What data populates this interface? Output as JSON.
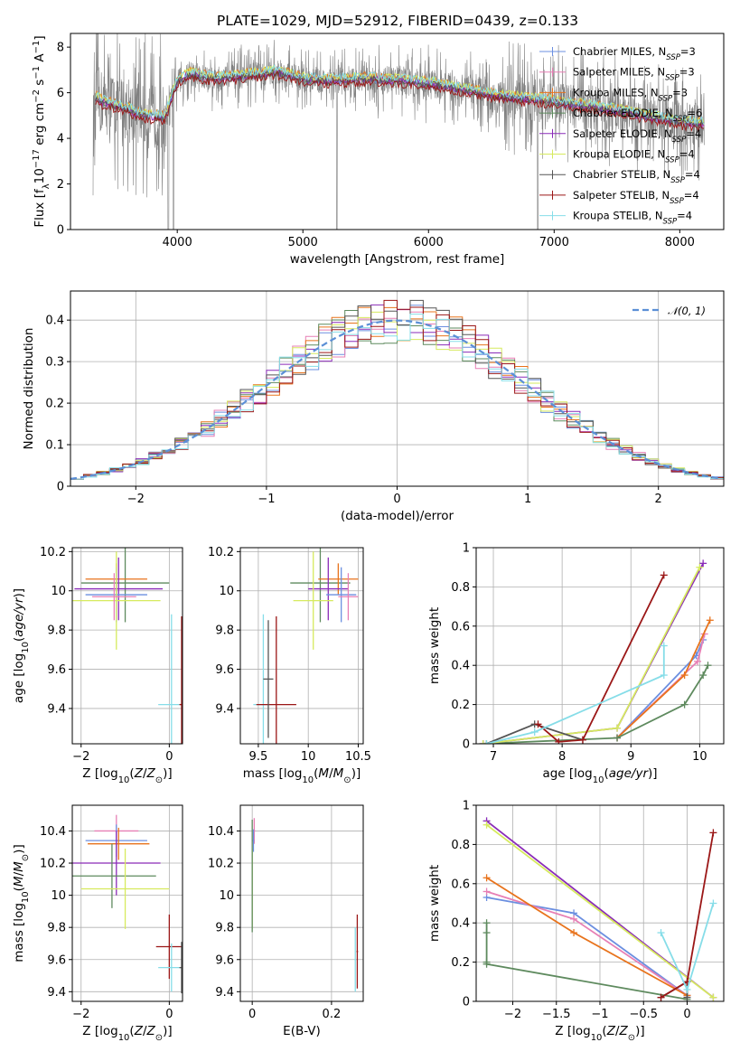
{
  "title": "PLATE=1029, MJD=52912, FIBERID=0439, z=0.133",
  "colors": {
    "Chabrier MILES": "#6b8fe0",
    "Salpeter MILES": "#e77fb5",
    "Kroupa MILES": "#e8731c",
    "Chabrier ELODIE": "#5e8a5e",
    "Salpeter ELODIE": "#8a2bb8",
    "Kroupa ELODIE": "#d6ea5e",
    "Chabrier STELIB": "#555555",
    "Salpeter STELIB": "#9b1717",
    "Kroupa STELIB": "#86dde8",
    "data": "#808080",
    "normal": "#5b8fd6"
  },
  "chart_data": [
    {
      "id": "spectrum",
      "type": "line",
      "title": "PLATE=1029, MJD=52912, FIBERID=0439, z=0.133",
      "xlabel": "wavelength [Angstrom, rest frame]",
      "ylabel": "Flux [f_λ 10^-17 erg cm^-2 s^-1 A^-1]",
      "xlim": [
        3150,
        8350
      ],
      "ylim": [
        0,
        8.6
      ],
      "xticks": [
        4000,
        5000,
        6000,
        7000,
        8000
      ],
      "yticks": [
        0,
        2,
        4,
        6,
        8
      ],
      "legend": [
        "Chabrier MILES, N_SSP=3",
        "Salpeter MILES, N_SSP=3",
        "Kroupa MILES, N_SSP=3",
        "Chabrier ELODIE, N_SSP=6",
        "Salpeter ELODIE, N_SSP=4",
        "Kroupa ELODIE, N_SSP=4",
        "Chabrier STELIB, N_SSP=4",
        "Salpeter STELIB, N_SSP=4",
        "Kroupa STELIB, N_SSP=4"
      ],
      "legend_position": "top-right",
      "model_continuum": [
        [
          3350,
          5.8
        ],
        [
          3400,
          5.6
        ],
        [
          3600,
          5.3
        ],
        [
          3700,
          5.0
        ],
        [
          3900,
          4.9
        ],
        [
          4000,
          6.5
        ],
        [
          4100,
          6.8
        ],
        [
          4300,
          6.6
        ],
        [
          4500,
          6.7
        ],
        [
          4800,
          6.9
        ],
        [
          5000,
          6.6
        ],
        [
          5200,
          6.5
        ],
        [
          5500,
          6.6
        ],
        [
          5800,
          6.5
        ],
        [
          6000,
          6.4
        ],
        [
          6300,
          6.1
        ],
        [
          6600,
          5.8
        ],
        [
          7000,
          5.6
        ],
        [
          7500,
          5.2
        ],
        [
          8000,
          4.7
        ],
        [
          8200,
          4.6
        ]
      ],
      "data_range": [
        3330,
        8200
      ],
      "grid": false
    },
    {
      "id": "residuals",
      "type": "histogram",
      "xlabel": "(data-model)/error",
      "ylabel": "Normed distribution",
      "xlim": [
        -2.5,
        2.5
      ],
      "ylim": [
        0,
        0.47
      ],
      "xticks": [
        -2,
        -1,
        0,
        1,
        2
      ],
      "yticks": [
        0.0,
        0.1,
        0.2,
        0.3,
        0.4
      ],
      "reference_label": "𝒩(0, 1)",
      "legend_position": "top-right",
      "bin_width": 0.1,
      "grid": true
    },
    {
      "id": "age-vs-Z",
      "type": "errorbar",
      "xlabel": "Z [log10(Z/Z⊙)]",
      "ylabel": "age  [log10(age/yr)]",
      "xlim": [
        -2.2,
        0.3
      ],
      "ylim": [
        9.22,
        10.22
      ],
      "xticks": [
        -2,
        0
      ],
      "yticks": [
        9.4,
        9.6,
        9.8,
        10.0,
        10.2
      ],
      "points": [
        {
          "s": "Chabrier ELODIE",
          "x": -1.0,
          "xe": 1.0,
          "y": 10.04,
          "ye": 0.2
        },
        {
          "s": "Kroupa MILES",
          "x": -1.2,
          "xe": 0.7,
          "y": 10.06,
          "ye": 0.08
        },
        {
          "s": "Salpeter ELODIE",
          "x": -1.15,
          "xe": 1.0,
          "y": 10.01,
          "ye": 0.16
        },
        {
          "s": "Chabrier MILES",
          "x": -1.2,
          "xe": 0.7,
          "y": 9.98,
          "ye": 0.14
        },
        {
          "s": "Kroupa ELODIE",
          "x": -1.2,
          "xe": 1.0,
          "y": 9.95,
          "ye": 0.25
        },
        {
          "s": "Salpeter MILES",
          "x": -1.25,
          "xe": 0.5,
          "y": 9.97,
          "ye": 0.12
        },
        {
          "s": "Kroupa STELIB",
          "x": 0.05,
          "xe": 0.3,
          "y": 9.42,
          "ye": 0.46
        },
        {
          "s": "Salpeter STELIB",
          "x": 0.28,
          "xe": 0.05,
          "y": 9.42,
          "ye": 0.45
        }
      ]
    },
    {
      "id": "age-vs-mass",
      "type": "errorbar",
      "xlabel": "mass [log10(M/M⊙)]",
      "ylabel": "",
      "xlim": [
        9.32,
        10.55
      ],
      "ylim": [
        9.22,
        10.22
      ],
      "xticks": [
        9.5,
        10.0,
        10.5
      ],
      "yticks": [
        9.4,
        9.6,
        9.8,
        10.0,
        10.2
      ],
      "points": [
        {
          "s": "Chabrier ELODIE",
          "x": 10.12,
          "xe": 0.3,
          "y": 10.04,
          "ye": 0.2
        },
        {
          "s": "Kroupa MILES",
          "x": 10.3,
          "xe": 0.2,
          "y": 10.06,
          "ye": 0.08
        },
        {
          "s": "Salpeter ELODIE",
          "x": 10.2,
          "xe": 0.2,
          "y": 10.01,
          "ye": 0.16
        },
        {
          "s": "Chabrier MILES",
          "x": 10.33,
          "xe": 0.15,
          "y": 9.98,
          "ye": 0.14
        },
        {
          "s": "Kroupa ELODIE",
          "x": 10.05,
          "xe": 0.2,
          "y": 9.95,
          "ye": 0.25
        },
        {
          "s": "Salpeter MILES",
          "x": 10.4,
          "xe": 0.1,
          "y": 9.97,
          "ye": 0.12
        },
        {
          "s": "Kroupa STELIB",
          "x": 9.55,
          "xe": 0.1,
          "y": 9.42,
          "ye": 0.46
        },
        {
          "s": "Salpeter STELIB",
          "x": 9.68,
          "xe": 0.2,
          "y": 9.42,
          "ye": 0.45
        },
        {
          "s": "Chabrier STELIB",
          "x": 9.6,
          "xe": 0.05,
          "y": 9.55,
          "ye": 0.3
        }
      ]
    },
    {
      "id": "mass-weight-vs-age",
      "type": "line",
      "xlabel": "age  [log10(age/yr)]",
      "ylabel": "mass weight",
      "xlim": [
        6.75,
        10.35
      ],
      "ylim": [
        0,
        1.0
      ],
      "xticks": [
        7,
        8,
        9,
        10
      ],
      "yticks": [
        0.0,
        0.2,
        0.4,
        0.6,
        0.8,
        1.0
      ],
      "series": [
        {
          "s": "Chabrier MILES",
          "x": [
            8.8,
            9.95,
            10.05
          ],
          "y": [
            0.03,
            0.45,
            0.53
          ]
        },
        {
          "s": "Salpeter MILES",
          "x": [
            8.8,
            9.97,
            10.07
          ],
          "y": [
            0.03,
            0.42,
            0.56
          ]
        },
        {
          "s": "Kroupa MILES",
          "x": [
            8.8,
            9.78,
            10.15
          ],
          "y": [
            0.03,
            0.35,
            0.63
          ]
        },
        {
          "s": "Chabrier ELODIE",
          "x": [
            6.85,
            8.8,
            9.78,
            10.05,
            10.12
          ],
          "y": [
            0.0,
            0.03,
            0.2,
            0.35,
            0.4
          ]
        },
        {
          "s": "Salpeter ELODIE",
          "x": [
            6.85,
            8.8,
            10.05
          ],
          "y": [
            0.0,
            0.08,
            0.92
          ]
        },
        {
          "s": "Kroupa ELODIE",
          "x": [
            6.85,
            8.8,
            10.0
          ],
          "y": [
            0.0,
            0.08,
            0.9
          ]
        },
        {
          "s": "Chabrier STELIB",
          "x": [
            6.9,
            7.6,
            8.3
          ],
          "y": [
            0.0,
            0.1,
            0.02
          ]
        },
        {
          "s": "Salpeter STELIB",
          "x": [
            7.65,
            7.95,
            8.3,
            9.48
          ],
          "y": [
            0.1,
            0.01,
            0.02,
            0.86
          ]
        },
        {
          "s": "Kroupa STELIB",
          "x": [
            6.9,
            7.6,
            9.48,
            9.48
          ],
          "y": [
            0.0,
            0.06,
            0.35,
            0.5
          ]
        }
      ],
      "grid": true
    },
    {
      "id": "mass-vs-Z",
      "type": "errorbar",
      "xlabel": "Z [log10(Z/Z⊙)]",
      "ylabel": "mass [log10(M/M⊙)]",
      "xlim": [
        -2.2,
        0.3
      ],
      "ylim": [
        9.34,
        10.56
      ],
      "xticks": [
        -2,
        0
      ],
      "yticks": [
        9.4,
        9.6,
        9.8,
        10.0,
        10.2,
        10.4
      ],
      "points": [
        {
          "s": "Salpeter MILES",
          "x": -1.2,
          "xe": 0.5,
          "y": 10.4,
          "ye": 0.1
        },
        {
          "s": "Chabrier MILES",
          "x": -1.2,
          "xe": 0.7,
          "y": 10.34,
          "ye": 0.1
        },
        {
          "s": "Kroupa MILES",
          "x": -1.15,
          "xe": 0.7,
          "y": 10.32,
          "ye": 0.1
        },
        {
          "s": "Salpeter ELODIE",
          "x": -1.2,
          "xe": 1.0,
          "y": 10.2,
          "ye": 0.2
        },
        {
          "s": "Chabrier ELODIE",
          "x": -1.3,
          "xe": 1.0,
          "y": 10.12,
          "ye": 0.2
        },
        {
          "s": "Kroupa ELODIE",
          "x": -1.0,
          "xe": 1.0,
          "y": 10.04,
          "ye": 0.25
        },
        {
          "s": "Salpeter STELIB",
          "x": 0.0,
          "xe": 0.3,
          "y": 9.68,
          "ye": 0.2
        },
        {
          "s": "Kroupa STELIB",
          "x": 0.05,
          "xe": 0.3,
          "y": 9.55,
          "ye": 0.15
        },
        {
          "s": "Chabrier STELIB",
          "x": 0.28,
          "xe": 0.05,
          "y": 9.55,
          "ye": 0.16
        }
      ]
    },
    {
      "id": "mass-vs-ebv",
      "type": "errorbar",
      "xlabel": "E(B-V)",
      "ylabel": "",
      "xlim": [
        -0.03,
        0.28
      ],
      "ylim": [
        9.34,
        10.56
      ],
      "xticks": [
        0.0,
        0.2
      ],
      "yticks": [
        9.4,
        9.6,
        9.8,
        10.0,
        10.2,
        10.4
      ],
      "points": [
        {
          "s": "Salpeter MILES",
          "x": 0.005,
          "xe": 0.003,
          "y": 10.4,
          "ye": 0.08
        },
        {
          "s": "Chabrier MILES",
          "x": 0.003,
          "xe": 0.002,
          "y": 10.34,
          "ye": 0.07
        },
        {
          "s": "Kroupa ELODIE",
          "x": 0.0,
          "xe": 0.0,
          "y": 10.04,
          "ye": 0.25
        },
        {
          "s": "Chabrier ELODIE",
          "x": 0.0,
          "xe": 0.0,
          "y": 10.12,
          "ye": 0.35
        },
        {
          "s": "Salpeter STELIB",
          "x": 0.265,
          "xe": 0.002,
          "y": 9.65,
          "ye": 0.23
        },
        {
          "s": "Kroupa STELIB",
          "x": 0.26,
          "xe": 0.002,
          "y": 9.6,
          "ye": 0.2
        }
      ]
    },
    {
      "id": "mass-weight-vs-Z",
      "type": "line",
      "xlabel": "Z [log10(Z/Z⊙)]",
      "ylabel": "mass weight",
      "xlim": [
        -2.42,
        0.42
      ],
      "ylim": [
        0,
        1.0
      ],
      "xticks": [
        -2.0,
        -1.5,
        -1.0,
        -0.5,
        0.0
      ],
      "yticks": [
        0.0,
        0.2,
        0.4,
        0.6,
        0.8,
        1.0
      ],
      "series": [
        {
          "s": "Chabrier MILES",
          "x": [
            -2.3,
            -1.3,
            0.0
          ],
          "y": [
            0.53,
            0.45,
            0.03
          ]
        },
        {
          "s": "Salpeter MILES",
          "x": [
            -2.3,
            -1.3,
            0.0
          ],
          "y": [
            0.56,
            0.42,
            0.03
          ]
        },
        {
          "s": "Kroupa MILES",
          "x": [
            -2.3,
            -1.3,
            0.0
          ],
          "y": [
            0.63,
            0.35,
            0.03
          ]
        },
        {
          "s": "Chabrier ELODIE",
          "x": [
            -2.3,
            -2.3,
            -2.3,
            -2.3,
            0.0
          ],
          "y": [
            0.4,
            0.35,
            0.2,
            0.19,
            0.01
          ]
        },
        {
          "s": "Salpeter ELODIE",
          "x": [
            -2.3,
            0.3
          ],
          "y": [
            0.92,
            0.02
          ]
        },
        {
          "s": "Kroupa ELODIE",
          "x": [
            -2.3,
            0.3
          ],
          "y": [
            0.9,
            0.02
          ]
        },
        {
          "s": "Chabrier STELIB",
          "x": [
            -0.3,
            0.0,
            0.0
          ],
          "y": [
            0.02,
            0.1,
            0.02
          ]
        },
        {
          "s": "Salpeter STELIB",
          "x": [
            -0.3,
            0.0,
            0.3
          ],
          "y": [
            0.02,
            0.1,
            0.86
          ]
        },
        {
          "s": "Kroupa STELIB",
          "x": [
            -0.3,
            0.0,
            0.3
          ],
          "y": [
            0.35,
            0.06,
            0.5
          ]
        }
      ],
      "grid": true
    }
  ]
}
